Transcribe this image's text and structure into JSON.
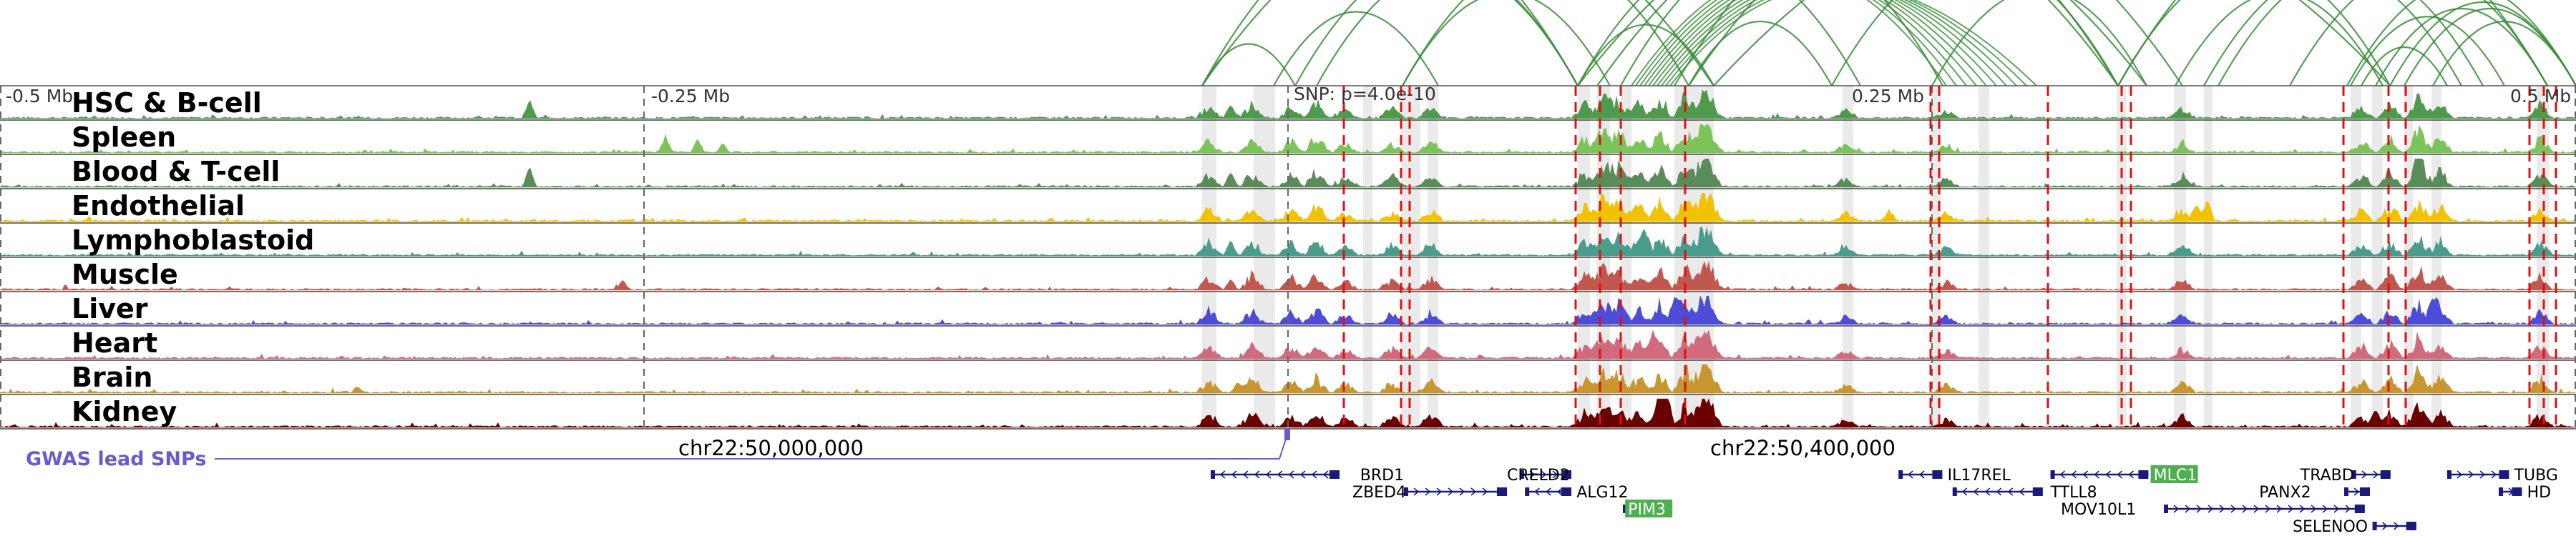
{
  "axis": {
    "start_mb": -0.5,
    "end_mb": 0.5,
    "ticks": [
      {
        "pos": -0.5,
        "label": "-0.5 Mb"
      },
      {
        "pos": -0.25,
        "label": "-0.25 Mb"
      },
      {
        "pos": 0.25,
        "label": "0.25 Mb"
      },
      {
        "pos": 0.5,
        "label": "0.5 Mb"
      }
    ],
    "snp_label": "SNP: p=4.0e-10",
    "snp_pos": 0.0
  },
  "tracks": [
    {
      "label": "HSC & B-cell",
      "color": "#4f9a4c"
    },
    {
      "label": "Spleen",
      "color": "#7cc35a"
    },
    {
      "label": "Blood & T-cell",
      "color": "#5a8c5a"
    },
    {
      "label": "Endothelial",
      "color": "#f2c200"
    },
    {
      "label": "Lymphoblastoid",
      "color": "#4a9c8c"
    },
    {
      "label": "Muscle",
      "color": "#c0584f"
    },
    {
      "label": "Liver",
      "color": "#4c4cd8"
    },
    {
      "label": "Heart",
      "color": "#d06a7c"
    },
    {
      "label": "Brain",
      "color": "#c8962e"
    },
    {
      "label": "Kidney",
      "color": "#6b0000"
    }
  ],
  "gwas": {
    "label": "GWAS lead SNPs",
    "color": "#6a5acd"
  },
  "chromosome": {
    "labels": [
      {
        "pos": -0.22,
        "text": "chr22:50,000,000"
      },
      {
        "pos": 0.18,
        "text": "chr22:50,400,000"
      }
    ]
  },
  "genes": [
    {
      "name": "BRD1",
      "start": -0.03,
      "end": 0.02,
      "row": 0,
      "strand": "-",
      "label_pos": 0.028
    },
    {
      "name": "ZBED4",
      "start": 0.045,
      "end": 0.085,
      "row": 1,
      "strand": "+",
      "label_pos": 0.025
    },
    {
      "name": "CRELD2",
      "start": 0.09,
      "end": 0.11,
      "row": 0,
      "strand": "+",
      "label_pos": 0.085
    },
    {
      "name": "ALG12",
      "start": 0.092,
      "end": 0.11,
      "row": 1,
      "strand": "-",
      "label_pos": 0.112
    },
    {
      "name": "PIM3",
      "start": 0.13,
      "end": 0.143,
      "row": 2,
      "strand": "+",
      "label_pos": 0.132,
      "highlight": true
    },
    {
      "name": "IL17REL",
      "start": 0.237,
      "end": 0.254,
      "row": 0,
      "strand": "-",
      "label_pos": 0.256
    },
    {
      "name": "TTLL8",
      "start": 0.258,
      "end": 0.293,
      "row": 1,
      "strand": "-",
      "label_pos": 0.296
    },
    {
      "name": "MLC1",
      "start": 0.296,
      "end": 0.334,
      "row": 0,
      "strand": "-",
      "label_pos": 0.336,
      "highlight": true
    },
    {
      "name": "MOV10L1",
      "start": 0.34,
      "end": 0.418,
      "row": 2,
      "strand": "+",
      "label_pos": 0.3
    },
    {
      "name": "TRABD",
      "start": 0.413,
      "end": 0.428,
      "row": 0,
      "strand": "+",
      "label_pos": 0.393
    },
    {
      "name": "PANX2",
      "start": 0.41,
      "end": 0.42,
      "row": 1,
      "strand": "+",
      "label_pos": 0.377
    },
    {
      "name": "SELENOO",
      "start": 0.421,
      "end": 0.438,
      "row": 3,
      "strand": "+",
      "label_pos": 0.39
    },
    {
      "name": "TUBG",
      "start": 0.45,
      "end": 0.474,
      "row": 0,
      "strand": "+",
      "label_pos": 0.476
    },
    {
      "name": "HD",
      "start": 0.47,
      "end": 0.479,
      "row": 1,
      "strand": "+",
      "label_pos": 0.481
    }
  ]
}
